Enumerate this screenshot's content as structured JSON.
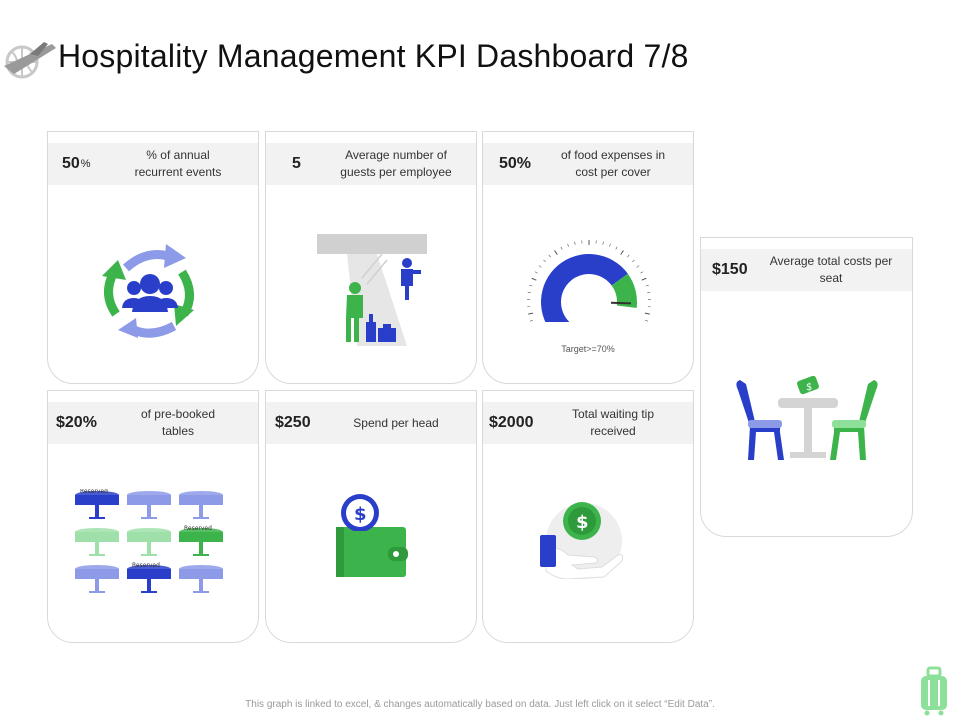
{
  "title": "Hospitality Management KPI Dashboard 7/8",
  "footer": "This graph is linked to excel, & changes automatically based on data. Just left click on it select “Edit Data”.",
  "colors": {
    "blue": "#2a3fc9",
    "green": "#3cb44b",
    "light_blue": "#8c9ae8",
    "gray": "#d9d9d9"
  },
  "cards": [
    {
      "id": "annual-events",
      "value": "50",
      "unit": "%",
      "desc": "% of annual recurrent events",
      "icon": "cycle-people-icon"
    },
    {
      "id": "guests-per-employee",
      "value": "5",
      "desc": "Average number of guests per employee",
      "icon": "hotel-reception-icon"
    },
    {
      "id": "food-expenses",
      "value": "50%",
      "desc": "of food expenses in cost per cover",
      "icon": "gauge-icon",
      "gauge_value": 50,
      "gauge_target": 70,
      "target_label": "Target>=70%"
    },
    {
      "id": "costs-per-seat",
      "value": "$150",
      "desc": "Average total costs per seat",
      "icon": "dining-table-icon"
    },
    {
      "id": "pre-booked",
      "value": "$20%",
      "desc": "of pre-booked tables",
      "icon": "reserved-tables-icon",
      "reserved_label": "Reserved"
    },
    {
      "id": "spend-per-head",
      "value": "$250",
      "desc": "Spend per head",
      "icon": "wallet-icon"
    },
    {
      "id": "waiting-tip",
      "value": "$2000",
      "desc": "Total waiting tip received",
      "icon": "hand-coin-icon"
    }
  ]
}
